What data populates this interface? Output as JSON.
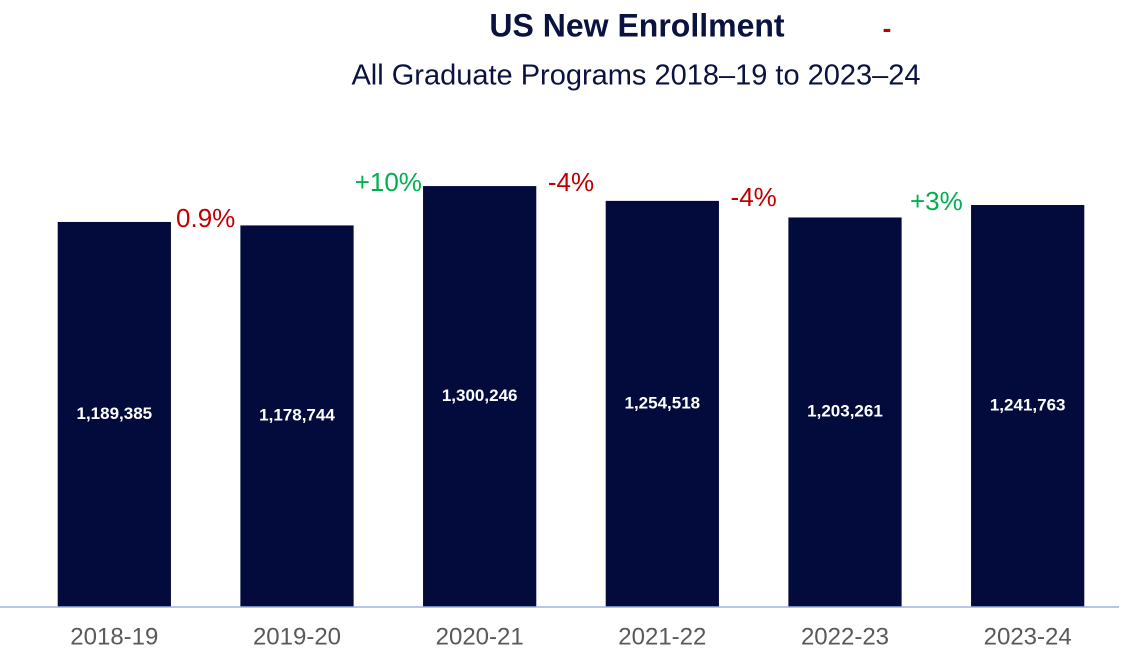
{
  "chart_data": {
    "type": "bar",
    "title": "US New Enrollment",
    "title_mark": "-",
    "title_mark_color": "#c00000",
    "subtitle": "All Graduate Programs 2018–19 to 2023–24",
    "categories": [
      "2018-19",
      "2019-20",
      "2020-21",
      "2021-22",
      "2022-23",
      "2023-24"
    ],
    "values": [
      1189385,
      1178744,
      1300246,
      1254518,
      1203261,
      1241763
    ],
    "value_labels": [
      "1,189,385",
      "1,178,744",
      "1,300,246",
      "1,254,518",
      "1,203,261",
      "1,241,763"
    ],
    "color": "#020b3b",
    "ylim": [
      0,
      1450000
    ],
    "changes": [
      {
        "label": "0.9%",
        "color": "#c00000"
      },
      {
        "label": "+10%",
        "color": "#00b050"
      },
      {
        "label": "-4%",
        "color": "#c00000"
      },
      {
        "label": "-4%",
        "color": "#c00000"
      },
      {
        "label": "+3%",
        "color": "#00b050"
      }
    ]
  }
}
